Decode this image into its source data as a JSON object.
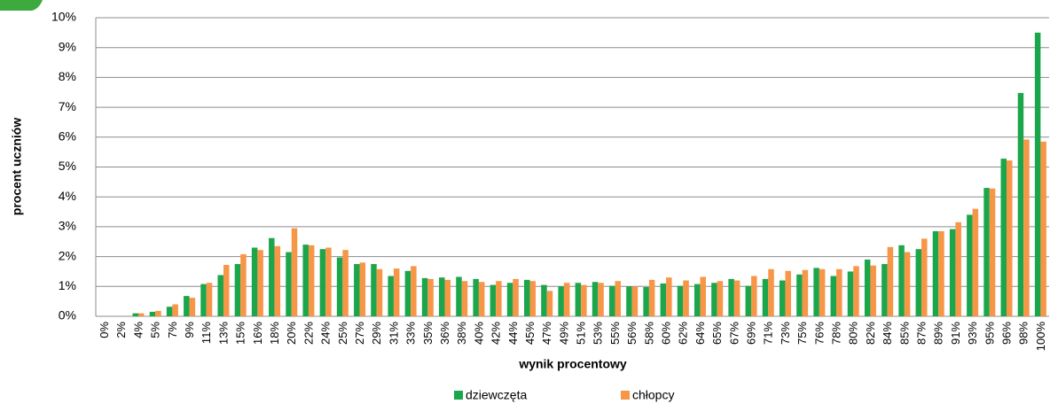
{
  "chart_data": {
    "type": "bar",
    "categories": [
      "0%",
      "2%",
      "4%",
      "5%",
      "7%",
      "9%",
      "11%",
      "13%",
      "15%",
      "16%",
      "18%",
      "20%",
      "22%",
      "24%",
      "25%",
      "27%",
      "29%",
      "31%",
      "33%",
      "35%",
      "36%",
      "38%",
      "40%",
      "42%",
      "44%",
      "45%",
      "47%",
      "49%",
      "51%",
      "53%",
      "55%",
      "56%",
      "58%",
      "60%",
      "62%",
      "64%",
      "65%",
      "67%",
      "69%",
      "71%",
      "73%",
      "75%",
      "76%",
      "78%",
      "80%",
      "82%",
      "84%",
      "85%",
      "87%",
      "89%",
      "91%",
      "93%",
      "95%",
      "96%",
      "98%",
      "100%"
    ],
    "series": [
      {
        "name": "dziewczęta",
        "color": "#1ca64c",
        "values": [
          0,
          0,
          0.1,
          0.15,
          0.32,
          0.68,
          1.08,
          1.38,
          1.75,
          2.3,
          2.62,
          2.15,
          2.4,
          2.25,
          1.97,
          1.75,
          1.75,
          1.35,
          1.52,
          1.28,
          1.3,
          1.32,
          1.25,
          1.05,
          1.12,
          1.22,
          1.05,
          1.0,
          1.12,
          1.15,
          1.02,
          1.0,
          0.98,
          1.1,
          1.02,
          1.08,
          1.12,
          1.25,
          1.02,
          1.25,
          1.2,
          1.4,
          1.62,
          1.35,
          1.5,
          1.9,
          1.75,
          2.38,
          2.25,
          2.85,
          2.92,
          3.4,
          4.3,
          5.28,
          7.48,
          9.5
        ]
      },
      {
        "name": "chłopcy",
        "color": "#f79646",
        "values": [
          0,
          0,
          0.1,
          0.18,
          0.4,
          0.62,
          1.12,
          1.72,
          2.08,
          2.22,
          2.35,
          2.95,
          2.38,
          2.3,
          2.22,
          1.8,
          1.58,
          1.6,
          1.68,
          1.25,
          1.22,
          1.18,
          1.15,
          1.18,
          1.25,
          1.18,
          0.85,
          1.12,
          1.05,
          1.12,
          1.18,
          1.0,
          1.22,
          1.3,
          1.2,
          1.32,
          1.18,
          1.2,
          1.35,
          1.58,
          1.52,
          1.55,
          1.58,
          1.58,
          1.68,
          1.7,
          2.32,
          2.15,
          2.6,
          2.85,
          3.15,
          3.6,
          4.28,
          5.22,
          5.92,
          5.85
        ]
      }
    ],
    "x_label": "wynik procentowy",
    "y_label": "procent  uczniów",
    "ylim": [
      0,
      10
    ],
    "yticks": [
      {
        "value": 0,
        "label": "0%"
      },
      {
        "value": 1,
        "label": "1%"
      },
      {
        "value": 2,
        "label": "2%"
      },
      {
        "value": 3,
        "label": "3%"
      },
      {
        "value": 4,
        "label": "4%"
      },
      {
        "value": 5,
        "label": "5%"
      },
      {
        "value": 6,
        "label": "6%"
      },
      {
        "value": 7,
        "label": "7%"
      },
      {
        "value": 8,
        "label": "8%"
      },
      {
        "value": 9,
        "label": "9%"
      },
      {
        "value": 10,
        "label": "10%"
      }
    ],
    "grid": true,
    "legend": "bottom"
  }
}
